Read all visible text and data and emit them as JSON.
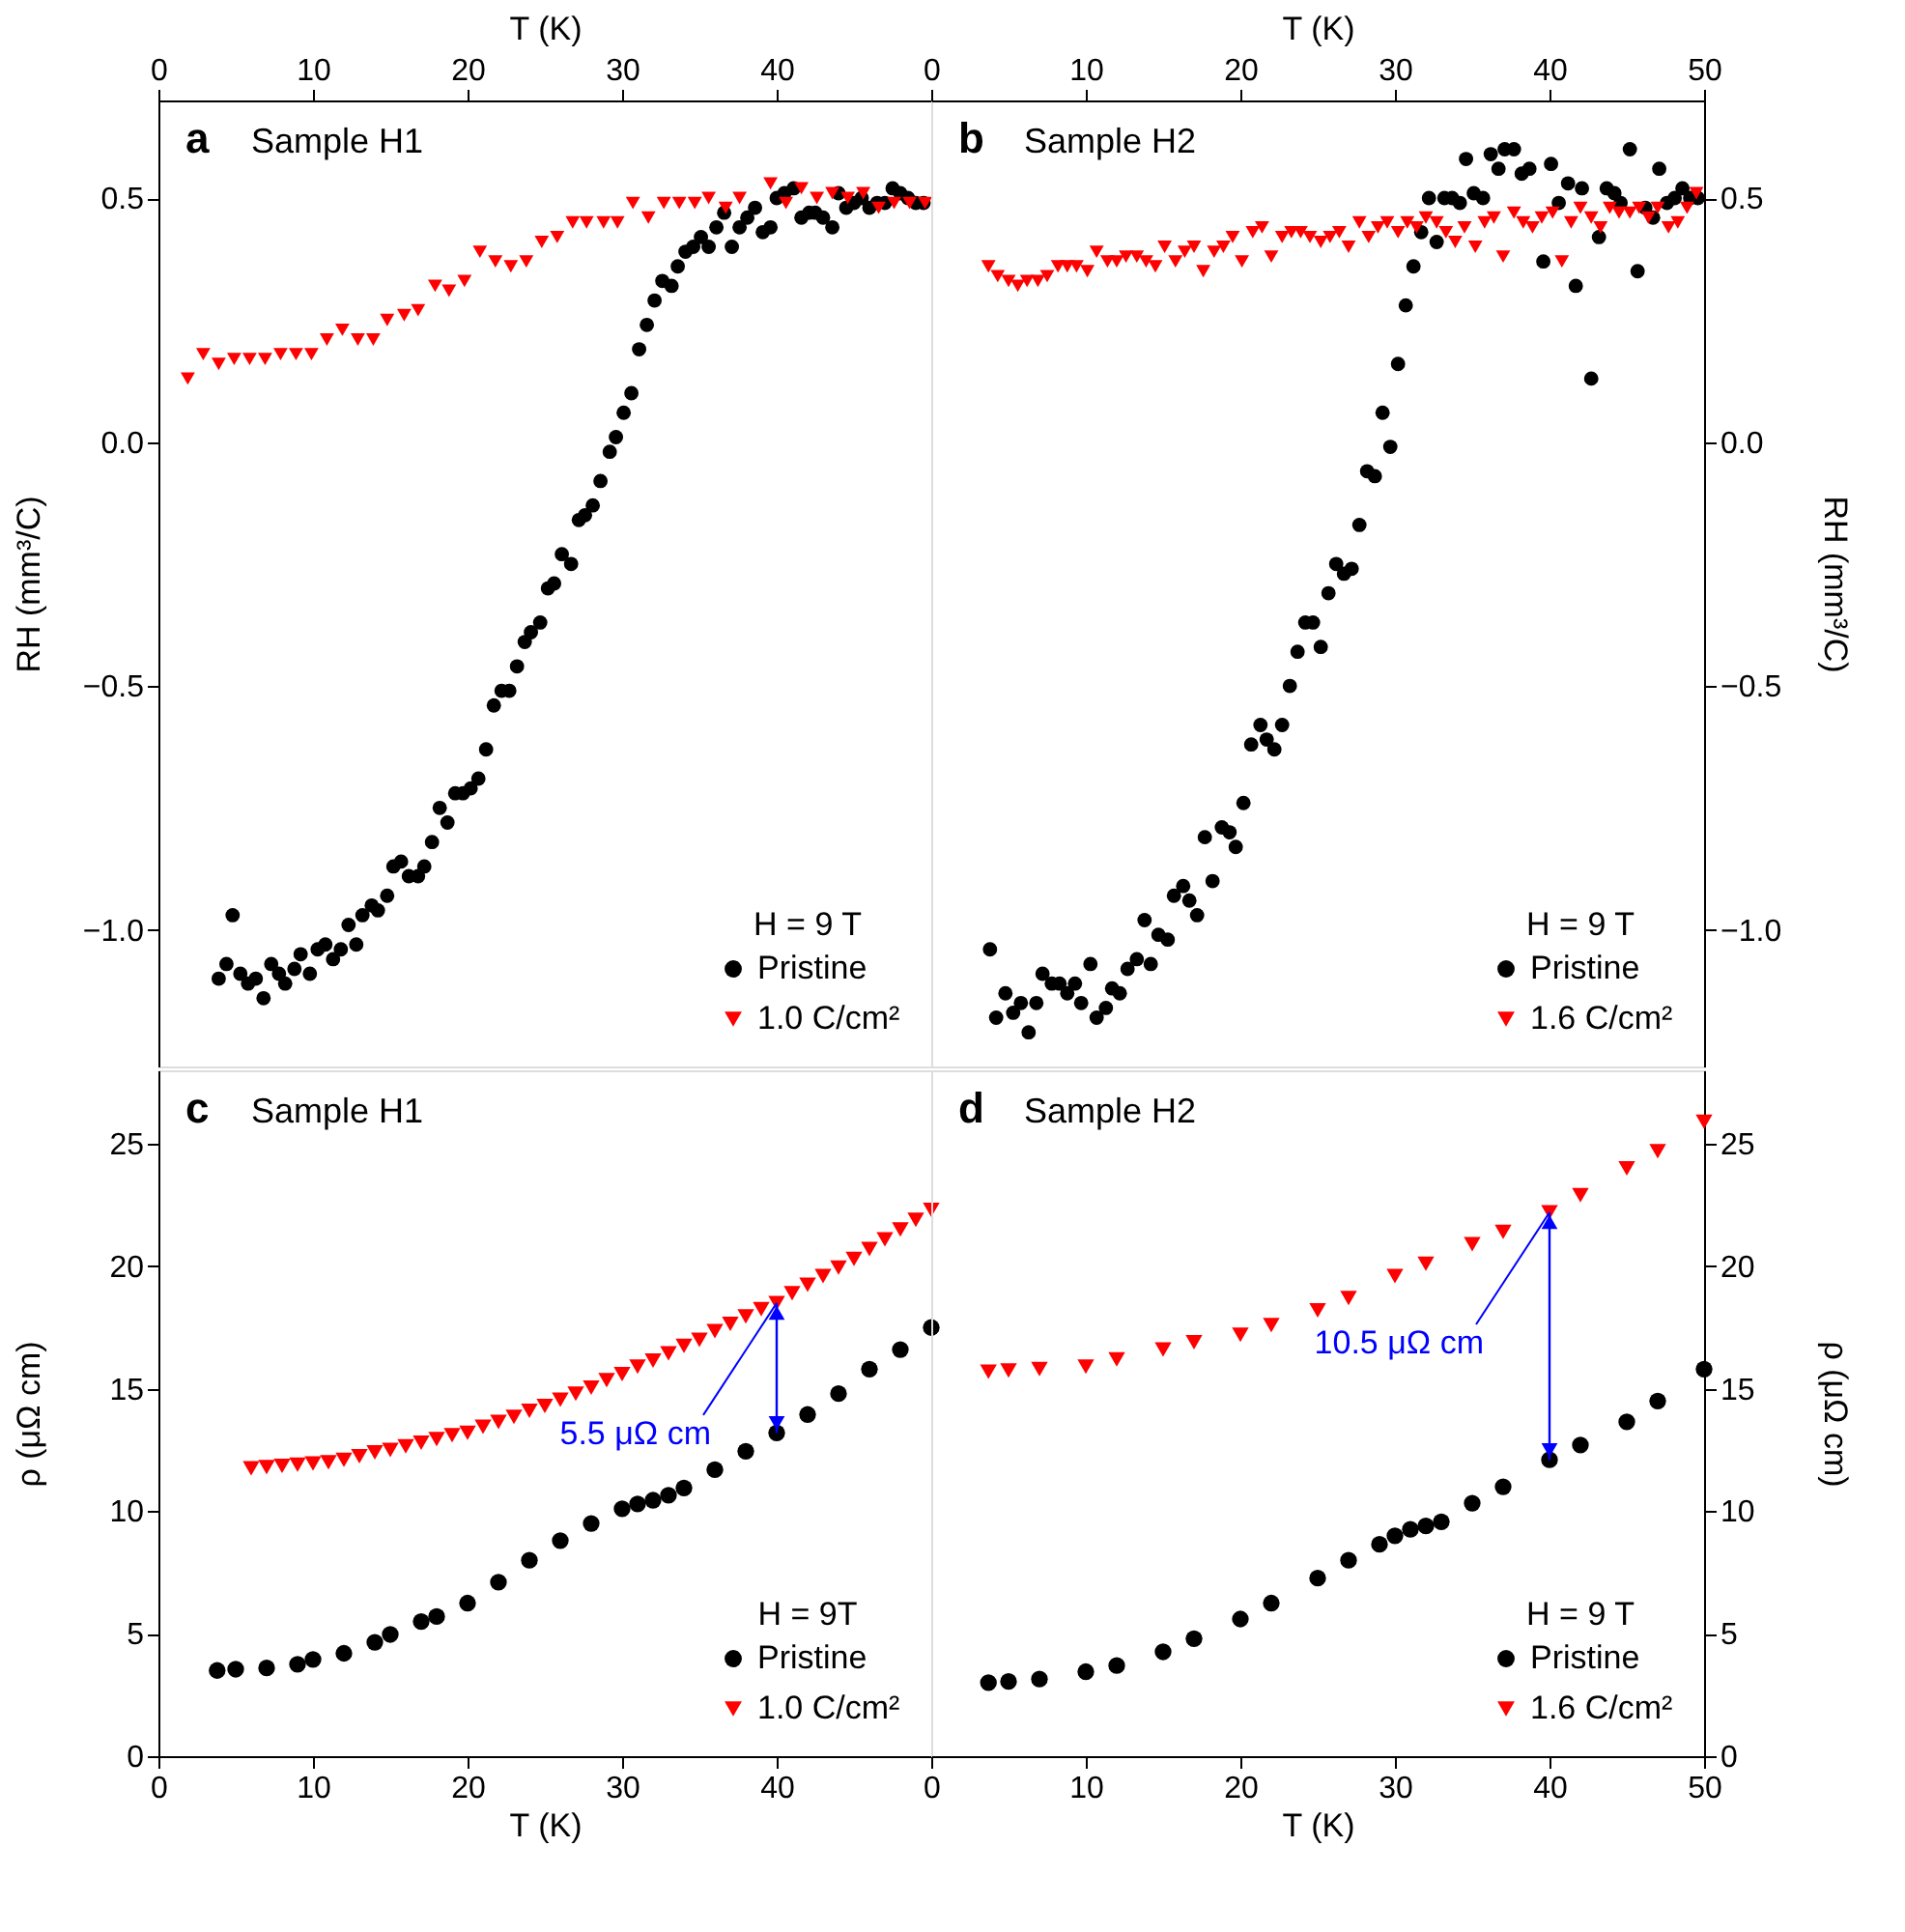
{
  "chart_data": [
    {
      "type": "scatter",
      "xlabel": "T (K)",
      "ylabel": "RH (mm³/C)",
      "legend_title": "H = 9 T",
      "legend": "bottom right",
      "annotations": [
        "a",
        "Sample H1"
      ],
      "xlim": [
        0,
        50
      ],
      "xticks": [
        0,
        10,
        20,
        30,
        40,
        {
          "value": 50,
          "label": null
        }
      ],
      "ylim": [
        -1.28,
        0.7
      ],
      "yticks": [
        {
          "value": -1.0,
          "label": "−1.0"
        },
        {
          "value": -0.5,
          "label": "−0.5"
        },
        {
          "value": 0.0,
          "label": "0.0"
        },
        0.5
      ],
      "series": [
        {
          "name": "Pristine",
          "color": "#000000",
          "marker": "circle",
          "x": [
            3.9,
            4.4,
            4.8,
            5.3,
            5.8,
            6.3,
            6.8,
            7.3,
            7.8,
            8.2,
            8.8,
            9.2,
            9.8,
            10.3,
            10.8,
            11.3,
            11.8,
            12.3,
            12.8,
            13.2,
            13.8,
            14.2,
            14.8,
            15.2,
            15.7,
            16.2,
            16.8,
            17.2,
            17.7,
            18.2,
            18.7,
            19.2,
            19.7,
            20.2,
            20.7,
            21.2,
            21.7,
            22.2,
            22.7,
            23.2,
            23.7,
            24.1,
            24.7,
            25.2,
            25.6,
            26.1,
            26.7,
            27.2,
            27.6,
            28.1,
            28.6,
            29.2,
            29.6,
            30.1,
            30.6,
            31.1,
            31.6,
            32.1,
            32.6,
            33.2,
            33.6,
            34.1,
            34.6,
            35.1,
            35.6,
            36.1,
            36.6,
            37.1,
            37.6,
            38.1,
            38.6,
            39.1,
            39.6,
            40.0,
            40.5,
            41.1,
            41.6,
            42.1,
            42.5,
            43.0,
            43.6,
            44.0,
            44.5,
            45.0,
            45.5,
            46.0,
            46.5,
            47.0,
            47.5,
            48.0,
            48.5,
            49.0,
            49.5
          ],
          "values": [
            -1.1,
            -1.07,
            -0.97,
            -1.09,
            -1.11,
            -1.1,
            -1.14,
            -1.07,
            -1.09,
            -1.11,
            -1.08,
            -1.05,
            -1.09,
            -1.04,
            -1.03,
            -1.06,
            -1.04,
            -0.99,
            -1.03,
            -0.97,
            -0.95,
            -0.96,
            -0.93,
            -0.87,
            -0.86,
            -0.89,
            -0.89,
            -0.87,
            -0.82,
            -0.75,
            -0.78,
            -0.72,
            -0.72,
            -0.71,
            -0.69,
            -0.63,
            -0.54,
            -0.51,
            -0.51,
            -0.46,
            -0.41,
            -0.39,
            -0.37,
            -0.3,
            -0.29,
            -0.23,
            -0.25,
            -0.16,
            -0.15,
            -0.13,
            -0.08,
            -0.02,
            0.01,
            0.06,
            0.1,
            0.19,
            0.24,
            0.29,
            0.33,
            0.32,
            0.36,
            0.39,
            0.4,
            0.42,
            0.4,
            0.44,
            0.47,
            0.4,
            0.44,
            0.46,
            0.48,
            0.43,
            0.44,
            0.5,
            0.51,
            0.52,
            0.46,
            0.47,
            0.47,
            0.46,
            0.44,
            0.51,
            0.48,
            0.49,
            0.5,
            0.48,
            0.49,
            0.49,
            0.52,
            0.51,
            0.5,
            0.49,
            0.49
          ]
        },
        {
          "name": "1.0 C/cm²",
          "color": "#ff0000",
          "marker": "triangle",
          "x": [
            1.9,
            2.9,
            3.9,
            4.9,
            5.9,
            6.9,
            7.9,
            8.9,
            9.9,
            10.9,
            11.9,
            12.9,
            13.9,
            14.8,
            15.9,
            16.8,
            17.9,
            18.8,
            19.8,
            20.8,
            21.8,
            22.8,
            23.8,
            24.8,
            25.8,
            26.8,
            27.7,
            28.8,
            29.7,
            30.7,
            31.7,
            32.7,
            33.7,
            34.7,
            35.6,
            36.7,
            37.6,
            39.6,
            40.6,
            41.6,
            42.6,
            43.6,
            44.6,
            45.6,
            46.6,
            47.6,
            48.6,
            49.6
          ],
          "values": [
            0.13,
            0.18,
            0.16,
            0.17,
            0.17,
            0.17,
            0.18,
            0.18,
            0.18,
            0.21,
            0.23,
            0.21,
            0.21,
            0.25,
            0.26,
            0.27,
            0.32,
            0.31,
            0.33,
            0.39,
            0.37,
            0.36,
            0.37,
            0.41,
            0.42,
            0.45,
            0.45,
            0.45,
            0.45,
            0.49,
            0.46,
            0.49,
            0.49,
            0.49,
            0.5,
            0.48,
            0.5,
            0.53,
            0.49,
            0.52,
            0.5,
            0.51,
            0.5,
            0.51,
            0.48,
            0.49,
            0.49,
            0.49
          ]
        }
      ]
    },
    {
      "type": "scatter",
      "xlabel": "T (K)",
      "ylabel": "RH (mm³/C)",
      "legend_title": "H = 9 T",
      "legend": "bottom right",
      "annotations": [
        "b",
        "Sample H2"
      ],
      "xlim": [
        0,
        50
      ],
      "xticks": [
        0,
        10,
        20,
        30,
        40,
        50
      ],
      "ylim": [
        -1.28,
        0.7
      ],
      "yticks": [
        {
          "value": -1.0,
          "label": "−1.0"
        },
        {
          "value": -0.5,
          "label": "−0.5"
        },
        {
          "value": 0.0,
          "label": "0.0"
        },
        0.5
      ],
      "series": [
        {
          "name": "Pristine",
          "color": "#000000",
          "marker": "circle",
          "x": [
            3.8,
            4.2,
            4.8,
            5.3,
            5.8,
            6.3,
            6.8,
            7.2,
            7.8,
            8.3,
            8.8,
            9.3,
            9.7,
            10.3,
            10.7,
            11.3,
            11.7,
            12.2,
            12.7,
            13.3,
            13.8,
            14.2,
            14.7,
            15.3,
            15.7,
            16.3,
            16.7,
            17.2,
            17.7,
            18.2,
            18.8,
            19.3,
            19.7,
            20.2,
            20.7,
            21.3,
            21.7,
            22.2,
            22.7,
            23.2,
            23.7,
            24.2,
            24.7,
            25.2,
            25.7,
            26.2,
            26.7,
            27.2,
            27.7,
            28.2,
            28.7,
            29.2,
            29.7,
            30.2,
            30.7,
            31.2,
            31.7,
            32.2,
            32.7,
            33.2,
            33.7,
            34.2,
            34.6,
            35.1,
            35.7,
            36.2,
            36.7,
            37.1,
            37.7,
            38.2,
            38.7,
            39.6,
            40.1,
            40.6,
            41.2,
            41.7,
            42.1,
            42.7,
            43.2,
            43.7,
            44.2,
            44.6,
            45.2,
            45.7,
            46.2,
            46.7,
            47.1,
            47.6,
            48.1,
            48.6,
            49.1,
            49.6
          ],
          "values": [
            -1.04,
            -1.18,
            -1.13,
            -1.17,
            -1.15,
            -1.21,
            -1.15,
            -1.09,
            -1.11,
            -1.11,
            -1.13,
            -1.11,
            -1.15,
            -1.07,
            -1.18,
            -1.16,
            -1.12,
            -1.13,
            -1.08,
            -1.06,
            -0.98,
            -1.07,
            -1.01,
            -1.02,
            -0.93,
            -0.91,
            -0.94,
            -0.97,
            -0.81,
            -0.9,
            -0.79,
            -0.8,
            -0.83,
            -0.74,
            -0.62,
            -0.58,
            -0.61,
            -0.63,
            -0.58,
            -0.5,
            -0.43,
            -0.37,
            -0.37,
            -0.42,
            -0.31,
            -0.25,
            -0.27,
            -0.26,
            -0.17,
            -0.06,
            -0.07,
            0.06,
            -0.01,
            0.16,
            0.28,
            0.36,
            0.43,
            0.5,
            0.41,
            0.5,
            0.5,
            0.49,
            0.58,
            0.51,
            0.5,
            0.59,
            0.56,
            0.6,
            0.6,
            0.55,
            0.56,
            0.37,
            0.57,
            0.49,
            0.53,
            0.32,
            0.52,
            0.13,
            0.42,
            0.52,
            0.51,
            0.49,
            0.6,
            0.35,
            0.48,
            0.46,
            0.56,
            0.49,
            0.5,
            0.52,
            0.5,
            0.5
          ]
        },
        {
          "name": "1.6 C/cm²",
          "color": "#ff0000",
          "marker": "triangle",
          "x": [
            3.7,
            4.3,
            5.0,
            5.6,
            6.2,
            6.9,
            7.5,
            8.2,
            8.8,
            9.4,
            10.1,
            10.7,
            11.4,
            12.0,
            12.6,
            13.3,
            13.9,
            14.5,
            15.1,
            15.8,
            16.4,
            17.0,
            17.6,
            18.3,
            18.9,
            19.5,
            20.1,
            20.8,
            21.4,
            22.0,
            22.7,
            23.3,
            23.9,
            24.5,
            25.2,
            25.8,
            26.4,
            27.0,
            27.7,
            28.3,
            28.9,
            29.5,
            30.2,
            30.8,
            31.4,
            32.0,
            32.7,
            33.3,
            33.9,
            34.5,
            35.2,
            35.8,
            36.4,
            37.0,
            37.7,
            38.3,
            38.9,
            39.5,
            40.2,
            40.8,
            41.4,
            42.0,
            42.7,
            43.3,
            43.9,
            44.5,
            45.2,
            45.8,
            46.4,
            47.0,
            47.7,
            48.3,
            48.9,
            49.5
          ],
          "values": [
            0.36,
            0.34,
            0.33,
            0.32,
            0.33,
            0.33,
            0.34,
            0.36,
            0.36,
            0.36,
            0.35,
            0.39,
            0.37,
            0.37,
            0.38,
            0.38,
            0.37,
            0.36,
            0.4,
            0.37,
            0.39,
            0.4,
            0.35,
            0.39,
            0.4,
            0.42,
            0.37,
            0.43,
            0.44,
            0.38,
            0.42,
            0.43,
            0.43,
            0.42,
            0.41,
            0.42,
            0.43,
            0.4,
            0.45,
            0.42,
            0.44,
            0.45,
            0.43,
            0.45,
            0.44,
            0.46,
            0.45,
            0.43,
            0.41,
            0.44,
            0.4,
            0.45,
            0.46,
            0.38,
            0.47,
            0.45,
            0.44,
            0.46,
            0.47,
            0.37,
            0.45,
            0.48,
            0.46,
            0.44,
            0.48,
            0.47,
            0.47,
            0.48,
            0.46,
            0.48,
            0.44,
            0.45,
            0.48,
            0.51
          ]
        }
      ]
    },
    {
      "type": "scatter",
      "xlabel": "T (K)",
      "ylabel": "ρ (μΩ cm)",
      "legend_title": "H = 9T",
      "legend": "bottom right",
      "annotations": [
        "c",
        "Sample H1",
        {
          "text": "5.5 μΩ cm",
          "x": 40,
          "y": 18.5
        }
      ],
      "xlim": [
        0,
        50
      ],
      "xticks": [
        0,
        10,
        20,
        30,
        40,
        {
          "value": 50,
          "label": null
        }
      ],
      "ylim": [
        0,
        28
      ],
      "yticks": [
        0,
        5,
        10,
        15,
        20,
        25
      ],
      "series": [
        {
          "name": "Pristine",
          "color": "#000000",
          "marker": "circle",
          "x": [
            3.8,
            5,
            7,
            9,
            10,
            12,
            14,
            15,
            17,
            18,
            20,
            22,
            24,
            26,
            28,
            30,
            31,
            32,
            33,
            34,
            36,
            38,
            40,
            42,
            44,
            46,
            48,
            50
          ],
          "values": [
            3.5,
            3.55,
            3.6,
            3.75,
            3.95,
            4.2,
            4.65,
            4.97,
            5.5,
            5.7,
            6.25,
            7.1,
            8.0,
            8.8,
            9.5,
            10.1,
            10.3,
            10.45,
            10.65,
            10.95,
            11.7,
            12.45,
            13.2,
            13.95,
            14.8,
            15.8,
            16.6,
            17.5
          ]
        },
        {
          "name": "1.0 C/cm²",
          "color": "#ff0000",
          "marker": "triangle",
          "x": [
            6,
            7,
            8,
            9,
            10,
            11,
            12,
            13,
            14,
            15,
            16,
            17,
            18,
            19,
            20,
            21,
            22,
            23,
            24,
            25,
            26,
            27,
            28,
            29,
            30,
            31,
            32,
            33,
            34,
            35,
            36,
            37,
            38,
            39,
            40,
            41,
            42,
            43,
            44,
            45,
            46,
            47,
            48,
            49,
            50
          ],
          "values": [
            11.75,
            11.8,
            11.85,
            11.9,
            11.95,
            12.0,
            12.1,
            12.25,
            12.4,
            12.5,
            12.65,
            12.8,
            12.95,
            13.1,
            13.2,
            13.45,
            13.65,
            13.85,
            14.1,
            14.3,
            14.55,
            14.8,
            15.05,
            15.35,
            15.6,
            15.9,
            16.15,
            16.45,
            16.75,
            17.0,
            17.35,
            17.65,
            17.95,
            18.25,
            18.5,
            18.9,
            19.25,
            19.6,
            19.95,
            20.3,
            20.7,
            21.1,
            21.5,
            21.9,
            22.3
          ]
        }
      ]
    },
    {
      "type": "scatter",
      "xlabel": "T (K)",
      "ylabel": "ρ (μΩ cm)",
      "legend_title": "H = 9 T",
      "legend": "bottom right",
      "annotations": [
        "d",
        "Sample H2",
        {
          "text": "10.5 μΩ cm",
          "x": 40,
          "y": 22.2
        }
      ],
      "xlim": [
        0,
        50
      ],
      "xticks": [
        0,
        10,
        20,
        30,
        40,
        50
      ],
      "ylim": [
        0,
        28
      ],
      "yticks": [
        0,
        5,
        10,
        15,
        20,
        25
      ],
      "series": [
        {
          "name": "Pristine",
          "color": "#000000",
          "marker": "circle",
          "x": [
            3.7,
            5,
            7,
            10,
            12,
            15,
            17,
            20,
            22,
            25,
            27,
            29,
            30,
            31,
            32,
            33,
            35,
            37,
            40,
            42,
            45,
            47,
            50
          ],
          "values": [
            3.0,
            3.05,
            3.15,
            3.45,
            3.7,
            4.26,
            4.8,
            5.6,
            6.25,
            7.27,
            8.0,
            8.65,
            9.0,
            9.26,
            9.4,
            9.57,
            10.33,
            11.0,
            12.1,
            12.7,
            13.65,
            14.5,
            15.8
          ]
        },
        {
          "name": "1.6 C/cm²",
          "color": "#ff0000",
          "marker": "triangle",
          "x": [
            3.7,
            5,
            7,
            10,
            12,
            15,
            17,
            20,
            22,
            25,
            27,
            30,
            32,
            35,
            37,
            40,
            42,
            45,
            47,
            50
          ],
          "values": [
            15.7,
            15.75,
            15.8,
            15.9,
            16.2,
            16.6,
            16.9,
            17.2,
            17.6,
            18.2,
            18.7,
            19.6,
            20.1,
            20.9,
            21.4,
            22.2,
            22.9,
            24.0,
            24.7,
            25.9
          ]
        }
      ]
    }
  ]
}
